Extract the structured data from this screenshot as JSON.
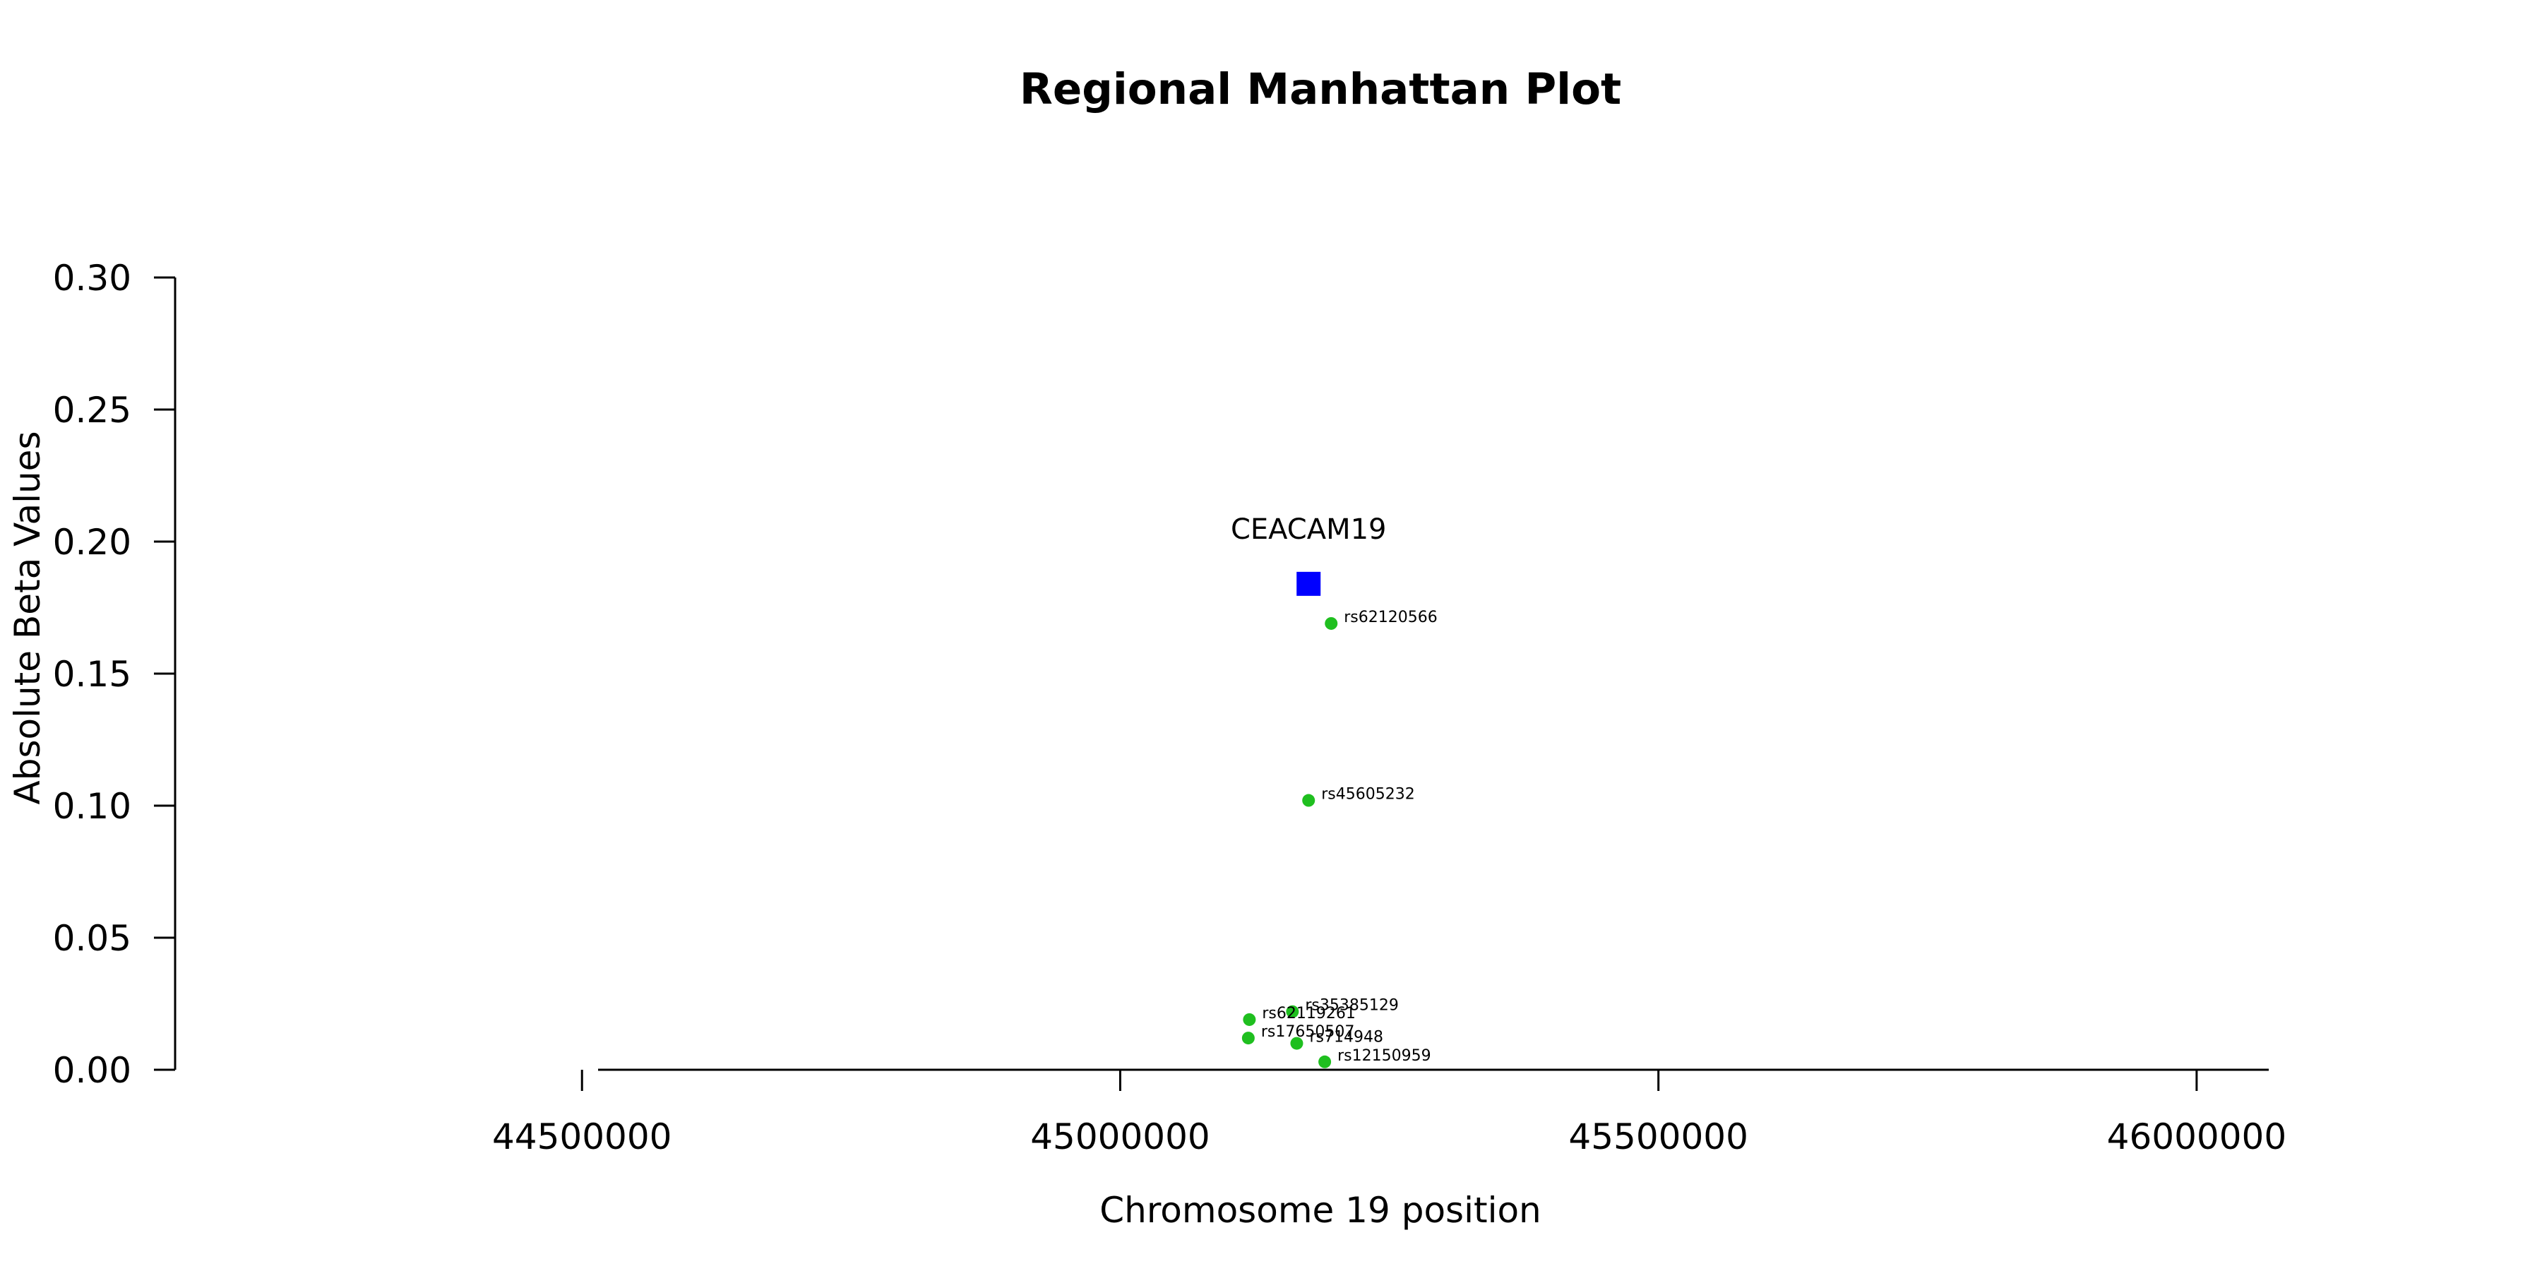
{
  "chart_data": {
    "type": "scatter",
    "title": "Regional Manhattan Plot",
    "xlabel": "Chromosome 19 position",
    "ylabel": "Absolute Beta Values",
    "xlim": [
      44122000,
      46250000
    ],
    "ylim": [
      0,
      0.3
    ],
    "x_ticks": [
      {
        "value": 44500000,
        "label": "44500000"
      },
      {
        "value": 45000000,
        "label": "45000000"
      },
      {
        "value": 45500000,
        "label": "45500000"
      },
      {
        "value": 46000000,
        "label": "46000000"
      }
    ],
    "y_ticks": [
      {
        "value": 0.0,
        "label": "0.00"
      },
      {
        "value": 0.05,
        "label": "0.05"
      },
      {
        "value": 0.1,
        "label": "0.10"
      },
      {
        "value": 0.15,
        "label": "0.15"
      },
      {
        "value": 0.2,
        "label": "0.20"
      },
      {
        "value": 0.25,
        "label": "0.25"
      },
      {
        "value": 0.3,
        "label": "0.30"
      }
    ],
    "gene": {
      "label": "CEACAM19",
      "x": 45175000,
      "y": 0.184,
      "color": "#0000ff",
      "marker": "square"
    },
    "snps": {
      "color": "#1fbf1f",
      "points": [
        {
          "id": "rs62120566",
          "x": 45196000,
          "y": 0.169
        },
        {
          "id": "rs45605232",
          "x": 45175000,
          "y": 0.102
        },
        {
          "id": "rs35385129",
          "x": 45160000,
          "y": 0.022
        },
        {
          "id": "rs62119261",
          "x": 45120000,
          "y": 0.019
        },
        {
          "id": "rs17650507",
          "x": 45119000,
          "y": 0.012
        },
        {
          "id": "rs714948",
          "x": 45164000,
          "y": 0.01
        },
        {
          "id": "rs12150959",
          "x": 45190000,
          "y": 0.003
        }
      ]
    },
    "grid": false,
    "legend": "none"
  }
}
